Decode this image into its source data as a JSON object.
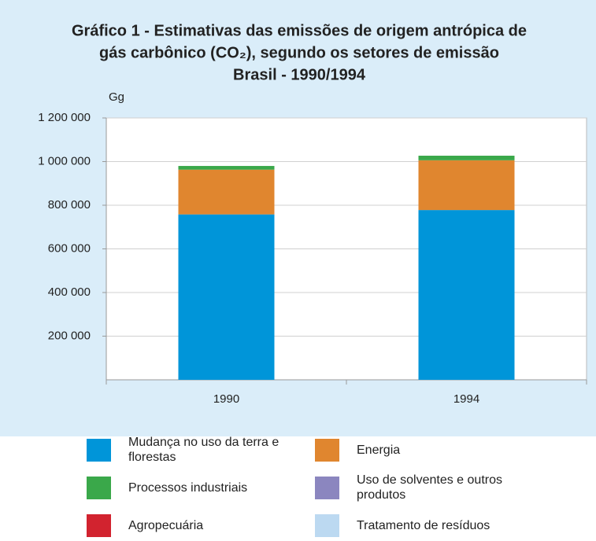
{
  "chart_data": {
    "type": "bar",
    "stacked": true,
    "title": [
      "Gráfico 1 - Estimativas das emissões de origem antrópica de",
      "gás carbônico (CO₂), segundo os setores de emissão"
    ],
    "subtitle": "Brasil - 1990/1994",
    "y_label": "Gg",
    "categories": [
      "1990",
      "1994"
    ],
    "series": [
      {
        "name": "Mudança no uso da terra e florestas",
        "color": "#0095d9",
        "values": [
          758000,
          778000
        ]
      },
      {
        "name": "Energia",
        "color": "#e0862f",
        "values": [
          205000,
          228000
        ]
      },
      {
        "name": "Processos industriais",
        "color": "#3aa84a",
        "values": [
          17000,
          21000
        ]
      },
      {
        "name": "Uso de solventes e outros produtos",
        "color": "#8b86bf",
        "values": [
          0,
          0
        ]
      },
      {
        "name": "Agropecuária",
        "color": "#d2232f",
        "values": [
          0,
          0
        ]
      },
      {
        "name": "Tratamento de resíduos",
        "color": "#bcd9f1",
        "values": [
          0,
          0
        ]
      }
    ],
    "ylim": [
      0,
      1200000
    ],
    "yticks": [
      {
        "value": 200000,
        "label": "200 000"
      },
      {
        "value": 400000,
        "label": "400 000"
      },
      {
        "value": 600000,
        "label": "600 000"
      },
      {
        "value": 800000,
        "label": "800 000"
      },
      {
        "value": 1000000,
        "label": "1 000 000"
      },
      {
        "value": 1200000,
        "label": "1 200 000"
      }
    ],
    "grid": true
  }
}
